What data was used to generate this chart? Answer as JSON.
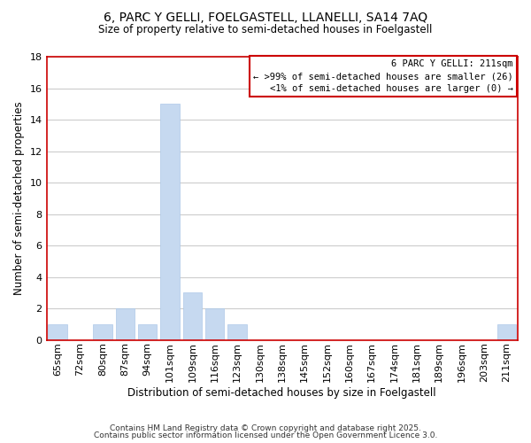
{
  "title1": "6, PARC Y GELLI, FOELGASTELL, LLANELLI, SA14 7AQ",
  "title2": "Size of property relative to semi-detached houses in Foelgastell",
  "xlabel": "Distribution of semi-detached houses by size in Foelgastell",
  "ylabel": "Number of semi-detached properties",
  "categories": [
    "65sqm",
    "72sqm",
    "80sqm",
    "87sqm",
    "94sqm",
    "101sqm",
    "109sqm",
    "116sqm",
    "123sqm",
    "130sqm",
    "138sqm",
    "145sqm",
    "152sqm",
    "160sqm",
    "167sqm",
    "174sqm",
    "181sqm",
    "189sqm",
    "196sqm",
    "203sqm",
    "211sqm"
  ],
  "values": [
    1,
    0,
    1,
    2,
    1,
    15,
    3,
    2,
    1,
    0,
    0,
    0,
    0,
    0,
    0,
    0,
    0,
    0,
    0,
    0,
    1
  ],
  "bar_color": "#c6d9f0",
  "bar_edge_color": "#adc8e8",
  "annotation_title": "6 PARC Y GELLI: 211sqm",
  "annotation_line1": "← >99% of semi-detached houses are smaller (26)",
  "annotation_line2": "<1% of semi-detached houses are larger (0) →",
  "annotation_box_color": "#ffffff",
  "annotation_box_edge": "#cc0000",
  "footer1": "Contains HM Land Registry data © Crown copyright and database right 2025.",
  "footer2": "Contains public sector information licensed under the Open Government Licence 3.0.",
  "ylim": [
    0,
    18
  ],
  "yticks": [
    0,
    2,
    4,
    6,
    8,
    10,
    12,
    14,
    16,
    18
  ],
  "background_color": "#ffffff",
  "grid_color": "#cccccc",
  "red_line_color": "#cc0000",
  "title1_fontsize": 10,
  "title2_fontsize": 8.5,
  "xlabel_fontsize": 8.5,
  "ylabel_fontsize": 8.5,
  "tick_fontsize": 8,
  "annotation_fontsize": 7.5
}
